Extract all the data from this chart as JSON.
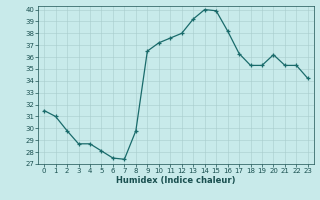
{
  "x": [
    0,
    1,
    2,
    3,
    4,
    5,
    6,
    7,
    8,
    9,
    10,
    11,
    12,
    13,
    14,
    15,
    16,
    17,
    18,
    19,
    20,
    21,
    22,
    23
  ],
  "y": [
    31.5,
    31.0,
    29.8,
    28.7,
    28.7,
    28.1,
    27.5,
    27.4,
    29.8,
    36.5,
    37.2,
    37.6,
    38.0,
    39.2,
    40.0,
    39.9,
    38.2,
    36.3,
    35.3,
    35.3,
    36.2,
    35.3,
    35.3,
    34.2
  ],
  "xlabel": "Humidex (Indice chaleur)",
  "ylim": [
    27,
    40
  ],
  "xlim": [
    -0.5,
    23.5
  ],
  "yticks": [
    27,
    28,
    29,
    30,
    31,
    32,
    33,
    34,
    35,
    36,
    37,
    38,
    39,
    40
  ],
  "xticks": [
    0,
    1,
    2,
    3,
    4,
    5,
    6,
    7,
    8,
    9,
    10,
    11,
    12,
    13,
    14,
    15,
    16,
    17,
    18,
    19,
    20,
    21,
    22,
    23
  ],
  "line_color": "#1a6b6b",
  "marker": "+",
  "bg_color": "#c8eaea",
  "grid_color": "#a8cccc",
  "tick_color": "#1a5050",
  "xlabel_color": "#1a5050",
  "tick_fontsize": 5.0,
  "xlabel_fontsize": 6.0,
  "linewidth": 0.9,
  "markersize": 3.5,
  "markeredgewidth": 0.9
}
